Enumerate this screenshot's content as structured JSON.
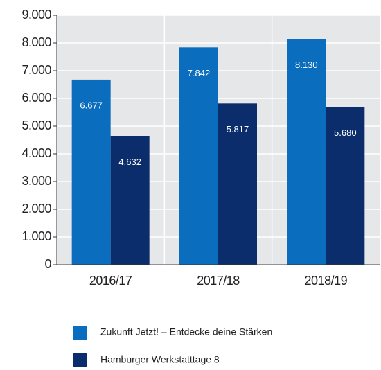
{
  "chart_data": {
    "type": "bar",
    "categories": [
      "2016/17",
      "2017/18",
      "2018/19"
    ],
    "series": [
      {
        "name": "Zukunft Jetzt! – Entdecke deine Stärken",
        "color": "#0b6dbd",
        "values": [
          6677,
          7842,
          8130
        ],
        "value_labels": [
          "6.677",
          "7.842",
          "8.130"
        ]
      },
      {
        "name": "Hamburger Werkstatttage 8",
        "color": "#0c2d6b",
        "values": [
          4632,
          5817,
          5680
        ],
        "value_labels": [
          "4.632",
          "5.817",
          "5.680"
        ]
      }
    ],
    "ylim": [
      0,
      9000
    ],
    "yticks": [
      0,
      {
        "value": 1000,
        "label": "1.000"
      },
      {
        "value": 2000,
        "label": "2.000"
      },
      {
        "value": 3000,
        "label": "3.000"
      },
      {
        "value": 4000,
        "label": "4.000"
      },
      {
        "value": 5000,
        "label": "5.000"
      },
      {
        "value": 6000,
        "label": "6.000"
      },
      {
        "value": 7000,
        "label": "7.000"
      },
      {
        "value": 8000,
        "label": "8.000"
      },
      {
        "value": 9000,
        "label": "9.000"
      }
    ],
    "grid": true,
    "legend": "bottom"
  }
}
